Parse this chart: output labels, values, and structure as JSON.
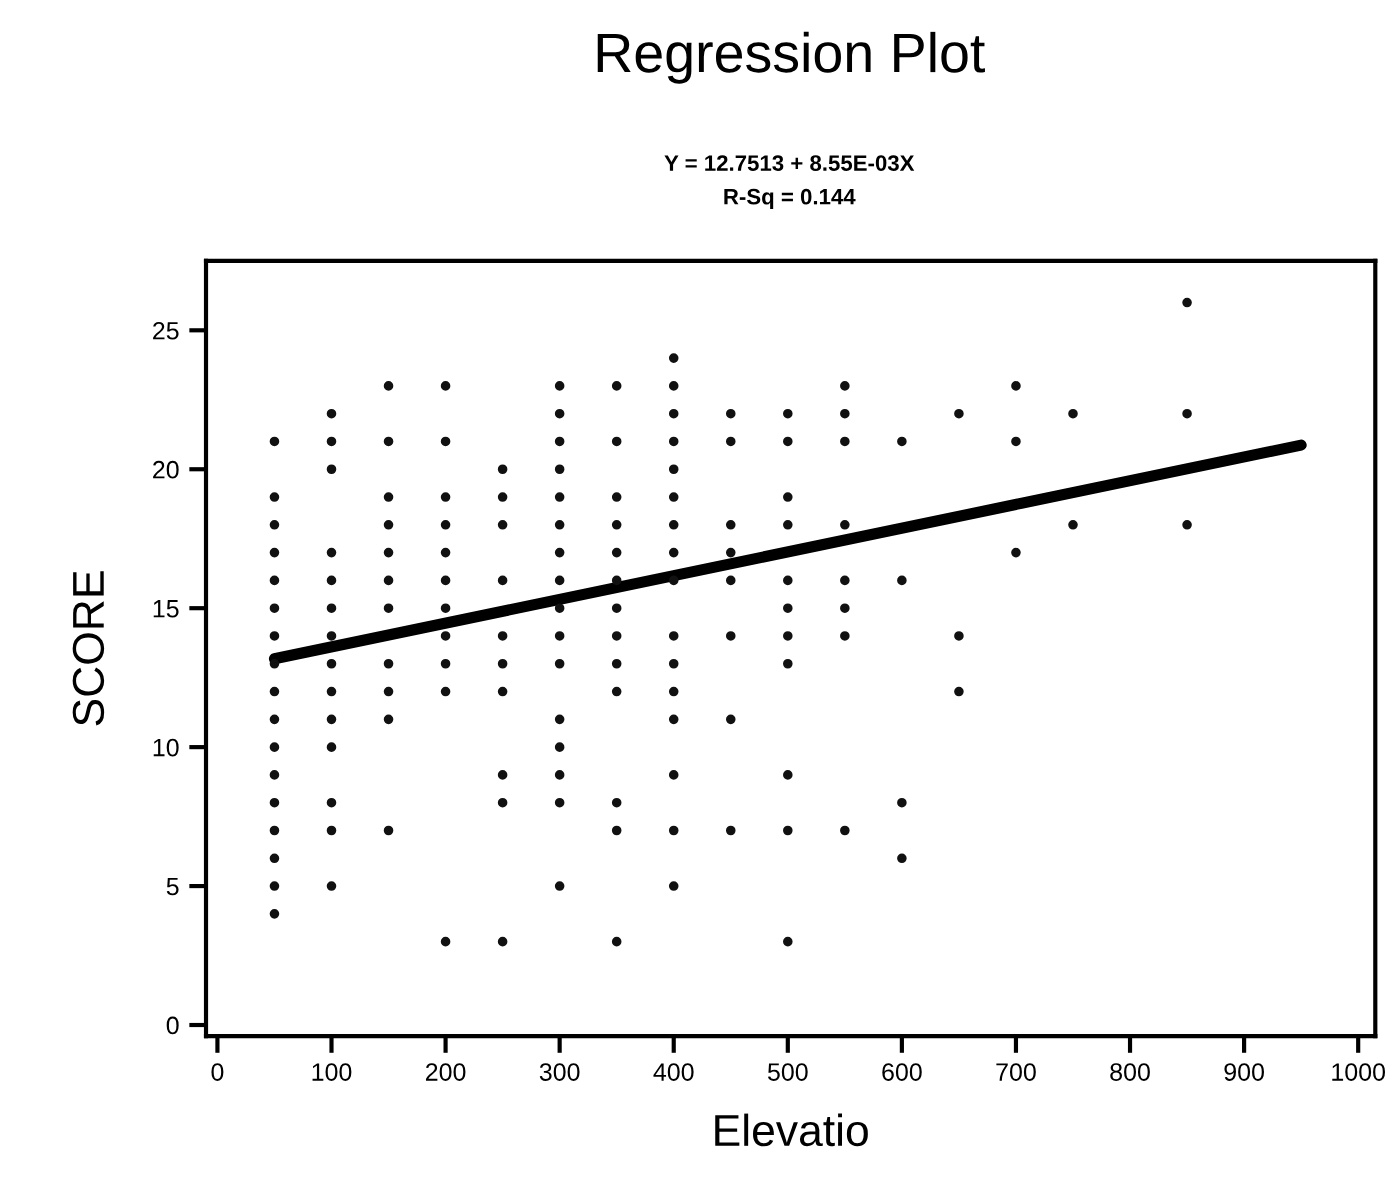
{
  "chart_data": {
    "type": "scatter",
    "title": "Regression Plot",
    "subtitle": "Y = 12.7513 + 8.55E-03X\nR-Sq = 0.144",
    "xlabel": "Elevatio",
    "ylabel": "SCORE",
    "xlim": [
      -10,
      1015
    ],
    "ylim": [
      -0.4,
      27.5
    ],
    "xticks": [
      0,
      100,
      200,
      300,
      400,
      500,
      600,
      700,
      800,
      900,
      1000
    ],
    "yticks": [
      0,
      5,
      10,
      15,
      20,
      25
    ],
    "grid": false,
    "series": [
      {
        "marker": "circle",
        "color": "#111111",
        "x": [
          50,
          50,
          50,
          50,
          50,
          50,
          50,
          50,
          50,
          50,
          50,
          50,
          50,
          50,
          50,
          50,
          50,
          100,
          100,
          100,
          100,
          100,
          100,
          100,
          100,
          100,
          100,
          100,
          100,
          100,
          100,
          150,
          150,
          150,
          150,
          150,
          150,
          150,
          150,
          150,
          150,
          150,
          200,
          200,
          200,
          200,
          200,
          200,
          200,
          200,
          200,
          200,
          200,
          250,
          250,
          250,
          250,
          250,
          250,
          250,
          250,
          250,
          250,
          300,
          300,
          300,
          300,
          300,
          300,
          300,
          300,
          300,
          300,
          300,
          300,
          300,
          300,
          300,
          300,
          350,
          350,
          350,
          350,
          350,
          350,
          350,
          350,
          350,
          350,
          350,
          350,
          350,
          400,
          400,
          400,
          400,
          400,
          400,
          400,
          400,
          400,
          400,
          400,
          400,
          400,
          400,
          400,
          400,
          450,
          450,
          450,
          450,
          450,
          450,
          450,
          450,
          500,
          500,
          500,
          500,
          500,
          500,
          500,
          500,
          500,
          500,
          500,
          550,
          550,
          550,
          550,
          550,
          550,
          550,
          550,
          600,
          600,
          600,
          600,
          650,
          650,
          650,
          700,
          700,
          700,
          750,
          750,
          850,
          850,
          850
        ],
        "values": [
          21,
          19,
          18,
          17,
          16,
          15,
          14,
          13,
          12,
          11,
          10,
          9,
          8,
          7,
          6,
          5,
          4,
          22,
          21,
          20,
          17,
          16,
          15,
          14,
          13,
          12,
          11,
          10,
          8,
          7,
          5,
          23,
          21,
          19,
          18,
          17,
          16,
          15,
          13,
          12,
          11,
          7,
          23,
          21,
          19,
          18,
          17,
          16,
          15,
          14,
          13,
          12,
          3,
          20,
          19,
          18,
          16,
          14,
          13,
          12,
          9,
          8,
          3,
          23,
          22,
          21,
          20,
          19,
          18,
          17,
          16,
          15,
          14,
          13,
          11,
          10,
          9,
          8,
          5,
          23,
          21,
          19,
          18,
          17,
          16,
          15,
          14,
          13,
          12,
          8,
          7,
          3,
          24,
          23,
          22,
          21,
          20,
          19,
          18,
          17,
          16,
          14,
          13,
          12,
          11,
          9,
          7,
          5,
          22,
          21,
          18,
          17,
          16,
          14,
          11,
          7,
          22,
          21,
          19,
          18,
          16,
          15,
          14,
          13,
          9,
          7,
          3,
          23,
          22,
          21,
          18,
          16,
          15,
          14,
          7,
          21,
          16,
          8,
          6,
          22,
          14,
          12,
          23,
          21,
          17,
          22,
          18,
          26,
          22,
          18
        ]
      },
      {
        "type": "line",
        "color": "#000000",
        "x": [
          50,
          950
        ],
        "values": [
          13.18,
          20.87
        ],
        "line_style": "solid"
      }
    ]
  }
}
